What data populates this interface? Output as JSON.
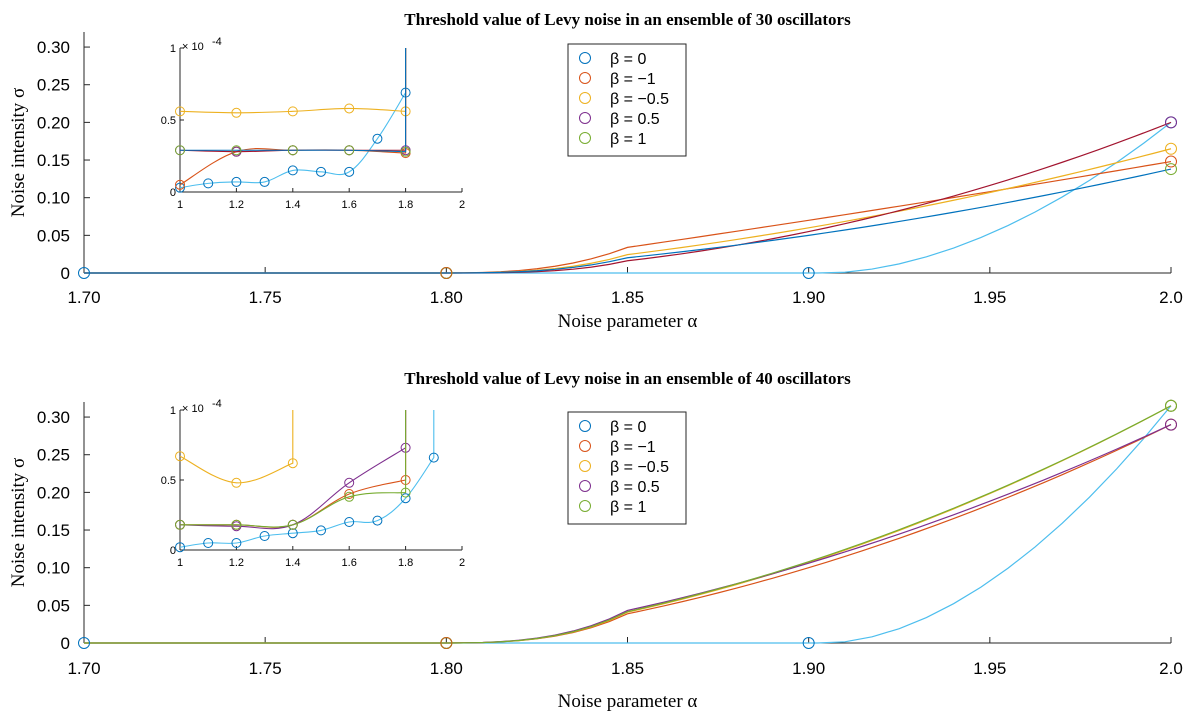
{
  "chart_data": [
    {
      "type": "line",
      "title": "Threshold value of Levy noise in an ensemble of 30 oscillators",
      "xlabel": "Noise parameter α",
      "ylabel": "Noise intensity σ",
      "xlim": [
        1.7,
        2.0
      ],
      "ylim": [
        0,
        0.32
      ],
      "x_ticks": [
        "1.70",
        "1.75",
        "1.80",
        "1.85",
        "1.90",
        "1.95",
        "2.0"
      ],
      "y_ticks": [
        "0",
        "0.05",
        "0.10",
        "0.15",
        "0.20",
        "0.25",
        "0.30"
      ],
      "legend_position": "top-center",
      "series": [
        {
          "name": "β = 0",
          "color": "#0072BD",
          "line_color": "#4DBEEE",
          "x": [
            1.7,
            1.8,
            1.9,
            2.0
          ],
          "y": [
            0,
            0,
            0,
            0.2
          ]
        },
        {
          "name": "β = −1",
          "color": "#D95319",
          "x": [
            1.7,
            1.8,
            1.9,
            2.0
          ],
          "y": [
            0,
            0,
            0.07,
            0.148
          ]
        },
        {
          "name": "β = −0.5",
          "color": "#EDB120",
          "x": [
            1.7,
            1.8,
            1.9,
            2.0
          ],
          "y": [
            0,
            0,
            0.06,
            0.165
          ]
        },
        {
          "name": "β = 0.5",
          "color": "#7E2F8E",
          "line_color": "#A2142F",
          "x": [
            1.7,
            1.8,
            1.9,
            2.0
          ],
          "y": [
            0,
            0,
            0.055,
            0.2
          ]
        },
        {
          "name": "β = 1",
          "color": "#77AC30",
          "line_color": "#0072BD",
          "x": [
            1.7,
            1.8,
            1.9,
            2.0
          ],
          "y": [
            0,
            0,
            0.05,
            0.138
          ]
        }
      ],
      "inset": {
        "xlim": [
          1,
          2
        ],
        "ylim": [
          0,
          1
        ],
        "x_ticks": [
          "1",
          "1.2",
          "1.4",
          "1.6",
          "1.8",
          "2"
        ],
        "y_ticks": [
          "0",
          "0.5",
          "1"
        ],
        "exponent_label": "× 10",
        "exponent_power": "-4",
        "series": [
          {
            "name": "β = 0",
            "x": [
              1.0,
              1.1,
              1.2,
              1.3,
              1.4,
              1.5,
              1.6,
              1.7,
              1.8
            ],
            "y": [
              0.03,
              0.06,
              0.07,
              0.07,
              0.15,
              0.14,
              0.14,
              0.37,
              0.69
            ]
          },
          {
            "name": "β = −1",
            "x": [
              1.0,
              1.2,
              1.4,
              1.6,
              1.8
            ],
            "y": [
              0.05,
              0.28,
              0.29,
              0.29,
              0.27
            ]
          },
          {
            "name": "β = −0.5",
            "x": [
              1.0,
              1.2,
              1.4,
              1.6,
              1.8
            ],
            "y": [
              0.56,
              0.55,
              0.56,
              0.58,
              0.56
            ]
          },
          {
            "name": "β = 0.5",
            "x": [
              1.0,
              1.2,
              1.4,
              1.6,
              1.8
            ],
            "y": [
              0.29,
              0.28,
              0.29,
              0.29,
              0.29
            ]
          },
          {
            "name": "β = 1",
            "x": [
              1.0,
              1.2,
              1.4,
              1.6,
              1.8
            ],
            "y": [
              0.29,
              0.29,
              0.29,
              0.29,
              0.28
            ]
          }
        ]
      }
    },
    {
      "type": "line",
      "title": "Threshold value of Levy noise in an ensemble of 40 oscillators",
      "xlabel": "Noise parameter α",
      "ylabel": "Noise intensity σ",
      "xlim": [
        1.7,
        2.0
      ],
      "ylim": [
        0,
        0.32
      ],
      "x_ticks": [
        "1.70",
        "1.75",
        "1.80",
        "1.85",
        "1.90",
        "1.95",
        "2.0"
      ],
      "y_ticks": [
        "0",
        "0.05",
        "0.10",
        "0.15",
        "0.20",
        "0.25",
        "0.30"
      ],
      "legend_position": "top-center",
      "series": [
        {
          "name": "β = 0",
          "color": "#0072BD",
          "line_color": "#4DBEEE",
          "x": [
            1.7,
            1.8,
            1.9,
            2.0
          ],
          "y": [
            0,
            0,
            0,
            0.315
          ]
        },
        {
          "name": "β = −1",
          "color": "#D95319",
          "x": [
            1.7,
            1.8,
            1.9,
            2.0
          ],
          "y": [
            0,
            0,
            0.1,
            0.29
          ]
        },
        {
          "name": "β = −0.5",
          "color": "#EDB120",
          "x": [
            1.7,
            1.8,
            1.9,
            2.0
          ],
          "y": [
            0,
            0,
            0.107,
            0.315
          ]
        },
        {
          "name": "β = 0.5",
          "color": "#7E2F8E",
          "x": [
            1.7,
            1.8,
            1.9,
            2.0
          ],
          "y": [
            0,
            0,
            0.106,
            0.29
          ]
        },
        {
          "name": "β = 1",
          "color": "#77AC30",
          "x": [
            1.7,
            1.8,
            1.9,
            2.0
          ],
          "y": [
            0,
            0,
            0.108,
            0.315
          ]
        }
      ],
      "inset": {
        "xlim": [
          1,
          2
        ],
        "ylim": [
          0,
          1
        ],
        "x_ticks": [
          "1",
          "1.2",
          "1.4",
          "1.6",
          "1.8",
          "2"
        ],
        "y_ticks": [
          "0",
          "0.5",
          "1"
        ],
        "exponent_label": "× 10",
        "exponent_power": "-4",
        "series": [
          {
            "name": "β = 0",
            "x": [
              1.0,
              1.1,
              1.2,
              1.3,
              1.4,
              1.5,
              1.6,
              1.7,
              1.8,
              1.9
            ],
            "y": [
              0.02,
              0.05,
              0.05,
              0.1,
              0.12,
              0.14,
              0.2,
              0.21,
              0.37,
              0.66
            ]
          },
          {
            "name": "β = −1",
            "x": [
              1.0,
              1.2,
              1.4,
              1.6,
              1.8
            ],
            "y": [
              0.18,
              0.18,
              0.18,
              0.4,
              0.5
            ]
          },
          {
            "name": "β = −0.5",
            "x": [
              1.0,
              1.2,
              1.4
            ],
            "y": [
              0.67,
              0.48,
              0.62
            ]
          },
          {
            "name": "β = 0.5",
            "x": [
              1.0,
              1.2,
              1.4,
              1.6,
              1.8
            ],
            "y": [
              0.18,
              0.17,
              0.18,
              0.48,
              0.73
            ]
          },
          {
            "name": "β = 1",
            "x": [
              1.0,
              1.2,
              1.4,
              1.6,
              1.8
            ],
            "y": [
              0.18,
              0.18,
              0.18,
              0.38,
              0.41
            ]
          }
        ]
      }
    }
  ]
}
